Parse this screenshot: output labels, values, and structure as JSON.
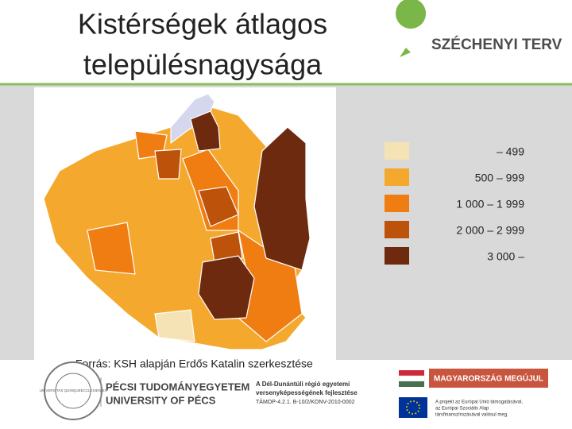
{
  "header": {
    "title_lines": [
      "Kistérségek átlagos",
      "településnagysága"
    ],
    "logo": {
      "mark": "Ú",
      "text": "SZÉCHENYI TERV"
    }
  },
  "legend": {
    "items": [
      {
        "label": "– 499",
        "color": "#f5e3b5"
      },
      {
        "label": "500 – 999",
        "color": "#f4a92e"
      },
      {
        "label": "1 000 – 1 999",
        "color": "#ef7d12"
      },
      {
        "label": "2 000 – 2 999",
        "color": "#bd520b"
      },
      {
        "label": "3 000 –",
        "color": "#6d2a0e"
      }
    ]
  },
  "source": "Forrás: KSH alapján Erdős Katalin szerkesztése",
  "footer": {
    "seal": "UNIVERSITAS QUINQUEECCLESIENSIS",
    "university": [
      "PÉCSI TUDOMÁNYEGYETEM",
      "UNIVERSITY OF PÉCS"
    ],
    "project": [
      "A Dél-Dunántúli régió egyetemi",
      "versenyképességének fejlesztése",
      "TÁMOP-4.2.1. B-10/2/KONV-2010-0002"
    ],
    "banner": "MAGYARORSZÁG MEGÚJUL",
    "eu_note": [
      "A projekt az Európai Unió támogatásával,",
      "az Európai Szociális Alap",
      "társfinanszírozásával valósul meg."
    ]
  }
}
